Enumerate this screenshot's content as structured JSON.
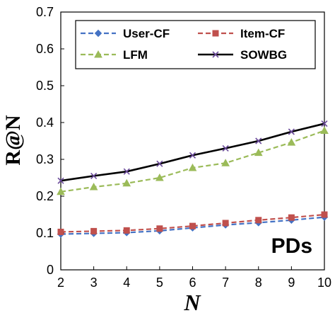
{
  "chart_data": {
    "type": "line",
    "title": "",
    "xlabel": "N",
    "ylabel": "R@N",
    "x": [
      2,
      3,
      4,
      5,
      6,
      7,
      8,
      9,
      10
    ],
    "xlim": [
      2,
      10
    ],
    "ylim": [
      0,
      0.7
    ],
    "x_ticks": [
      "2",
      "3",
      "4",
      "5",
      "6",
      "7",
      "8",
      "9",
      "10"
    ],
    "y_ticks": [
      "0",
      "0.1",
      "0.2",
      "0.3",
      "0.4",
      "0.5",
      "0.6",
      "0.7"
    ],
    "grid": false,
    "legend_position": "top",
    "annotation": "PDs",
    "series": [
      {
        "name": "User-CF",
        "color": "#4472c4",
        "marker": "diamond",
        "dash": "dashed",
        "values": [
          0.097,
          0.099,
          0.101,
          0.106,
          0.114,
          0.122,
          0.128,
          0.135,
          0.143
        ]
      },
      {
        "name": "Item-CF",
        "color": "#c0504d",
        "marker": "square",
        "dash": "dashed",
        "values": [
          0.103,
          0.105,
          0.107,
          0.112,
          0.119,
          0.127,
          0.135,
          0.142,
          0.15
        ]
      },
      {
        "name": "LFM",
        "color": "#9bbb59",
        "marker": "triangle",
        "dash": "dashed",
        "values": [
          0.212,
          0.225,
          0.235,
          0.25,
          0.277,
          0.29,
          0.318,
          0.346,
          0.378
        ]
      },
      {
        "name": "SOWBG",
        "color": "#000000",
        "marker": "x",
        "dash": "solid",
        "values": [
          0.242,
          0.255,
          0.267,
          0.288,
          0.311,
          0.33,
          0.35,
          0.375,
          0.397
        ]
      }
    ]
  }
}
